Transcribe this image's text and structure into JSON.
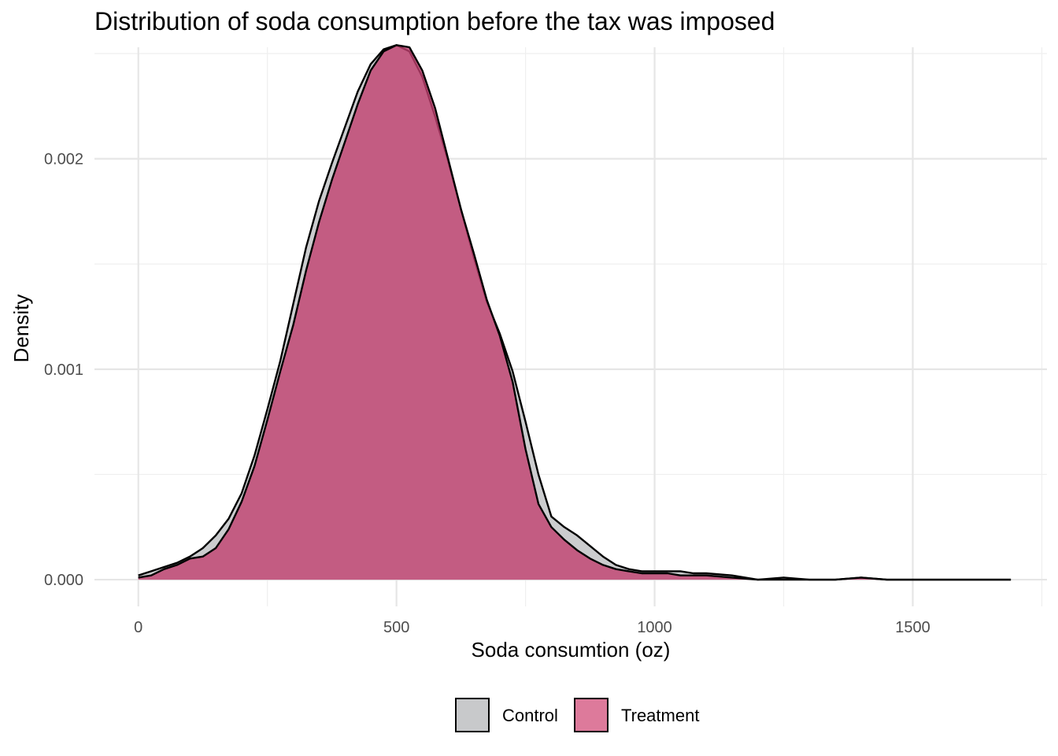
{
  "chart_data": {
    "type": "area",
    "title": "Distribution of soda consumption before the tax was imposed",
    "xlabel": "Soda consumtion (oz)",
    "ylabel": "Density",
    "xlim": [
      -85,
      1760
    ],
    "ylim": [
      -0.000127,
      0.00253
    ],
    "x_ticks": [
      0,
      500,
      1000,
      1500
    ],
    "x_tick_labels": [
      "0",
      "500",
      "1000",
      "1500"
    ],
    "y_ticks": [
      0.0,
      0.001,
      0.002
    ],
    "y_tick_labels": [
      "0.000",
      "0.001",
      "0.002"
    ],
    "grid": true,
    "legend_position": "bottom",
    "series": [
      {
        "name": "Control",
        "color": "#c8c9cb",
        "x": [
          0,
          25,
          50,
          75,
          100,
          125,
          150,
          175,
          200,
          225,
          250,
          275,
          300,
          325,
          350,
          375,
          400,
          425,
          450,
          475,
          500,
          525,
          550,
          575,
          600,
          625,
          650,
          675,
          700,
          725,
          750,
          775,
          800,
          825,
          850,
          875,
          900,
          925,
          950,
          975,
          1000,
          1025,
          1050,
          1075,
          1100,
          1150,
          1200,
          1250,
          1300,
          1350,
          1400,
          1450,
          1500,
          1550,
          1600,
          1650,
          1690
        ],
        "y": [
          2e-05,
          4e-05,
          6e-05,
          8e-05,
          0.00011,
          0.00015,
          0.00021,
          0.00029,
          0.00041,
          0.00059,
          0.00081,
          0.00104,
          0.00131,
          0.00158,
          0.0018,
          0.00198,
          0.00215,
          0.00232,
          0.00245,
          0.00252,
          0.00254,
          0.00251,
          0.00239,
          0.0022,
          0.00199,
          0.00176,
          0.00153,
          0.00132,
          0.00117,
          0.00099,
          0.00075,
          0.0005,
          0.0003,
          0.00025,
          0.00021,
          0.00016,
          0.00011,
          7e-05,
          5e-05,
          4e-05,
          4e-05,
          4e-05,
          4e-05,
          3e-05,
          3e-05,
          2e-05,
          0.0,
          1e-05,
          0.0,
          0.0,
          1e-05,
          0.0,
          0.0,
          0.0,
          0.0,
          0.0,
          0.0
        ]
      },
      {
        "name": "Treatment",
        "color": "#c0406f",
        "x": [
          0,
          25,
          50,
          75,
          100,
          125,
          150,
          175,
          200,
          225,
          250,
          275,
          300,
          325,
          350,
          375,
          400,
          425,
          450,
          475,
          500,
          525,
          550,
          575,
          600,
          625,
          650,
          675,
          700,
          725,
          750,
          775,
          800,
          825,
          850,
          875,
          900,
          925,
          950,
          975,
          1000,
          1025,
          1050,
          1075,
          1100,
          1150,
          1200,
          1250,
          1300,
          1350,
          1400,
          1450,
          1500,
          1550,
          1600,
          1650,
          1690
        ],
        "y": [
          1e-05,
          2e-05,
          5e-05,
          7e-05,
          0.0001,
          0.00011,
          0.00015,
          0.00024,
          0.00037,
          0.00054,
          0.00076,
          0.00099,
          0.00121,
          0.00147,
          0.0017,
          0.0019,
          0.00208,
          0.00226,
          0.00242,
          0.00251,
          0.00254,
          0.00253,
          0.00242,
          0.00224,
          0.002,
          0.00176,
          0.00155,
          0.00133,
          0.00116,
          0.00094,
          0.00062,
          0.00036,
          0.00025,
          0.00019,
          0.00014,
          0.0001,
          7e-05,
          5e-05,
          4e-05,
          3e-05,
          3e-05,
          3e-05,
          2e-05,
          2e-05,
          2e-05,
          1e-05,
          0.0,
          0.0,
          0.0,
          0.0,
          1e-05,
          0.0,
          0.0,
          0.0,
          0.0,
          0.0,
          0.0
        ]
      }
    ]
  }
}
